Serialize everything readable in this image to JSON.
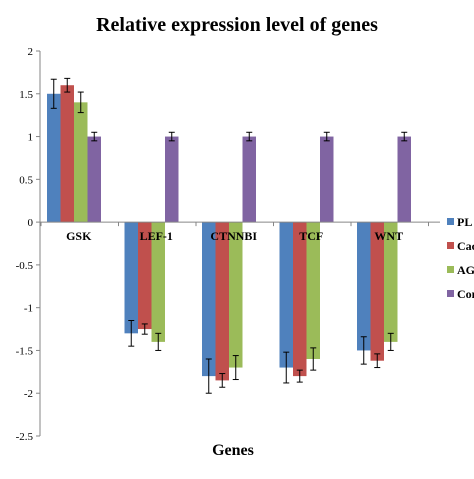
{
  "chart_data": {
    "type": "bar",
    "title": "Relative expression level of genes",
    "xlabel": "Genes",
    "ylabel": "",
    "ylim": [
      -2.5,
      2
    ],
    "yticks": [
      -2.5,
      -2,
      -1.5,
      -1,
      -0.5,
      0,
      0.5,
      1,
      1.5,
      2
    ],
    "ytick_labels": [
      "-2.5",
      "-2",
      "-1.5",
      "-1",
      "-0.5",
      "0",
      "0.5",
      "1",
      "1.5",
      "2"
    ],
    "grid": false,
    "legend_position": "right",
    "categories": [
      "GSK",
      "LEF-1",
      "CTNNBI",
      "TCF",
      "WNT"
    ],
    "series": [
      {
        "name": "PL",
        "color": "#4f81bd",
        "values": [
          1.5,
          -1.3,
          -1.8,
          -1.7,
          -1.5
        ],
        "errors": [
          0.17,
          0.15,
          0.2,
          0.18,
          0.16
        ]
      },
      {
        "name": "Cac",
        "color": "#c0504d",
        "values": [
          1.6,
          -1.25,
          -1.85,
          -1.8,
          -1.62
        ],
        "errors": [
          0.08,
          0.06,
          0.08,
          0.07,
          0.08
        ]
      },
      {
        "name": "AG",
        "color": "#9bbb59",
        "values": [
          1.4,
          -1.4,
          -1.7,
          -1.6,
          -1.4
        ],
        "errors": [
          0.12,
          0.1,
          0.14,
          0.13,
          0.1
        ]
      },
      {
        "name": "Con",
        "color": "#8064a2",
        "values": [
          1.0,
          1.0,
          1.0,
          1.0,
          1.0
        ],
        "errors": [
          0.05,
          0.05,
          0.05,
          0.05,
          0.05
        ]
      }
    ]
  }
}
